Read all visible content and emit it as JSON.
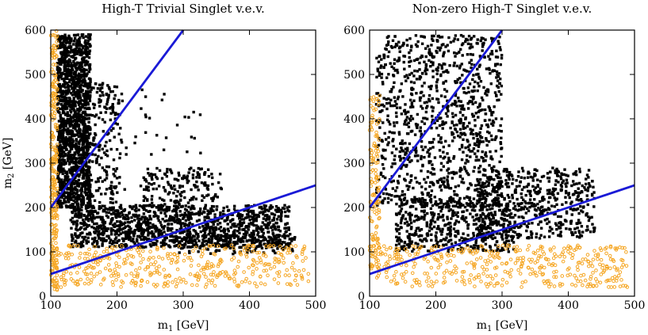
{
  "figure": {
    "panels": [
      {
        "title": "High-T Trivial Singlet v.e.v.",
        "xlabel": "m",
        "xlabel_sub": "1",
        "xlabel_unit": " [GeV]",
        "ylabel": "m",
        "ylabel_sub": "2",
        "ylabel_unit": " [GeV]"
      },
      {
        "title": "Non-zero High-T Singlet v.e.v.",
        "xlabel": "m",
        "xlabel_sub": "1",
        "xlabel_unit": " [GeV]",
        "ylabel": "",
        "ylabel_sub": "",
        "ylabel_unit": ""
      }
    ]
  },
  "colors": {
    "frame": "#000000",
    "accepted": "#000000",
    "excluded": "#f5a623",
    "line": "#1a1ad6"
  },
  "chart_data": [
    {
      "type": "scatter",
      "title": "High-T Trivial Singlet v.e.v.",
      "xlabel": "m1 [GeV]",
      "ylabel": "m2 [GeV]",
      "xlim": [
        100,
        500
      ],
      "ylim": [
        0,
        600
      ],
      "xticks": [
        "100",
        "200",
        "300",
        "400",
        "500"
      ],
      "yticks": [
        "0",
        "100",
        "200",
        "300",
        "400",
        "500",
        "600"
      ],
      "grid": false,
      "lines": [
        {
          "x": [
            100,
            300
          ],
          "y": [
            200,
            600
          ]
        },
        {
          "x": [
            100,
            500
          ],
          "y": [
            50,
            250
          ]
        }
      ],
      "series": [
        {
          "marker": "filled-square",
          "clusters": [
            {
              "x": [
                110,
                160
              ],
              "y": [
                200,
                590
              ],
              "n": 1500
            },
            {
              "x": [
                150,
                205
              ],
              "y": [
                210,
                480
              ],
              "n": 200
            },
            {
              "x": [
                205,
                330
              ],
              "y": [
                240,
                470
              ],
              "n": 40
            },
            {
              "x": [
                130,
                460
              ],
              "y": [
                110,
                205
              ],
              "n": 1300
            },
            {
              "x": [
                240,
                360
              ],
              "y": [
                200,
                290
              ],
              "n": 160
            },
            {
              "x": [
                290,
                470
              ],
              "y": [
                95,
                140
              ],
              "n": 150
            }
          ]
        },
        {
          "marker": "open-circle",
          "clusters": [
            {
              "x": [
                100,
                110
              ],
              "y": [
                10,
                600
              ],
              "n": 260
            },
            {
              "x": [
                110,
                490
              ],
              "y": [
                20,
                115
              ],
              "n": 420
            }
          ]
        }
      ]
    },
    {
      "type": "scatter",
      "title": "Non-zero High-T Singlet v.e.v.",
      "xlabel": "m1 [GeV]",
      "xlim": [
        100,
        500
      ],
      "ylim": [
        0,
        600
      ],
      "xticks": [
        "100",
        "200",
        "300",
        "400",
        "500"
      ],
      "yticks": [
        "0",
        "100",
        "200",
        "300",
        "400",
        "500",
        "600"
      ],
      "grid": false,
      "lines": [
        {
          "x": [
            100,
            300
          ],
          "y": [
            200,
            600
          ]
        },
        {
          "x": [
            100,
            500
          ],
          "y": [
            50,
            250
          ]
        }
      ],
      "series": [
        {
          "marker": "filled-square",
          "clusters": [
            {
              "x": [
                110,
                300
              ],
              "y": [
                200,
                590
              ],
              "n": 1100
            },
            {
              "x": [
                140,
                320
              ],
              "y": [
                100,
                220
              ],
              "n": 500
            },
            {
              "x": [
                260,
                440
              ],
              "y": [
                130,
                290
              ],
              "n": 550
            }
          ]
        },
        {
          "marker": "open-circle",
          "clusters": [
            {
              "x": [
                100,
                115
              ],
              "y": [
                60,
                460
              ],
              "n": 140
            },
            {
              "x": [
                110,
                490
              ],
              "y": [
                20,
                115
              ],
              "n": 420
            }
          ]
        }
      ]
    }
  ]
}
